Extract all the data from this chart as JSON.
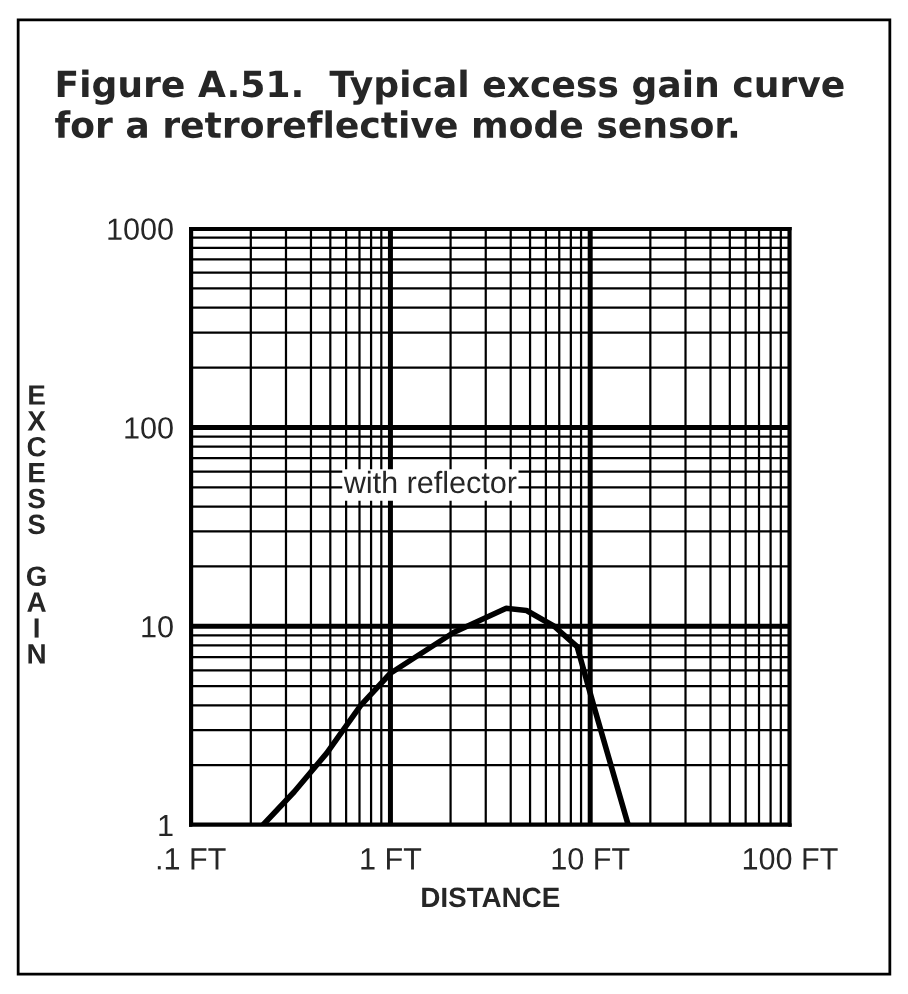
{
  "chart_data": {
    "type": "line",
    "title": "Figure A.51.  Typical excess gain curve for a retroreflective mode sensor.",
    "xlabel": "DISTANCE",
    "ylabel": "EXCESS GAIN",
    "annotations": [
      "with reflector"
    ],
    "log": "xy",
    "series": [
      {
        "color": "#000000",
        "x": [
          0.23,
          0.33,
          0.48,
          0.71,
          1.0,
          2.07,
          3.8,
          4.8,
          6.6,
          8.6,
          10.4,
          15.5
        ],
        "values": [
          1,
          1.47,
          2.3,
          4,
          5.8,
          9.3,
          12.3,
          12,
          10,
          7.9,
          4,
          1
        ]
      }
    ],
    "xlim": [
      0.1,
      100
    ],
    "ylim": [
      1,
      1000
    ],
    "xticks": [
      {
        "value": 0.1,
        "label": ".1 FT"
      },
      {
        "value": 1,
        "label": "1 FT"
      },
      {
        "value": 10,
        "label": "10 FT"
      },
      {
        "value": 100,
        "label": "100 FT"
      }
    ],
    "yticks": [
      1,
      10,
      100,
      1000
    ],
    "grid": true,
    "marker": "none",
    "line_style": "solid",
    "legend": false
  }
}
